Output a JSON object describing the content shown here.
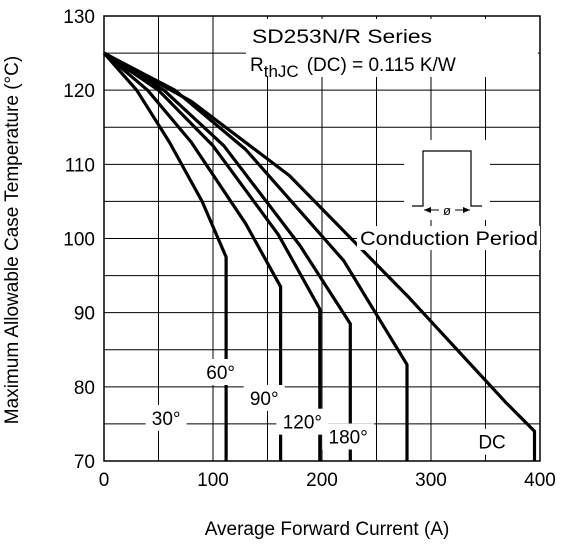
{
  "chart_data": {
    "type": "line",
    "title": "",
    "xlabel": "Average Forward Current (A)",
    "ylabel": "Maximum Allowable Case Temperature (°C)",
    "xlim": [
      0,
      400
    ],
    "ylim": [
      70,
      130
    ],
    "x_ticks": [
      0,
      100,
      200,
      300,
      400
    ],
    "y_ticks": [
      70,
      80,
      90,
      100,
      110,
      120,
      130
    ],
    "x_minor_grid": 50,
    "y_minor_grid": 5,
    "grid": true,
    "annotations": {
      "series_title": "SD253N/R Series",
      "rth_prefix": "R",
      "rth_subscript": "thJC",
      "rth_suffix": "(DC) = 0.115 K/W",
      "inset_label": "Conduction Period",
      "inset_symbol": "ø"
    },
    "series": [
      {
        "name": "30°",
        "points": [
          [
            0,
            125
          ],
          [
            30,
            120
          ],
          [
            60,
            113
          ],
          [
            90,
            105
          ],
          [
            112,
            97.5
          ],
          [
            112,
            70
          ]
        ]
      },
      {
        "name": "60°",
        "points": [
          [
            0,
            125
          ],
          [
            40,
            120
          ],
          [
            80,
            113
          ],
          [
            130,
            102
          ],
          [
            162,
            93.5
          ],
          [
            162,
            70
          ]
        ]
      },
      {
        "name": "90°",
        "points": [
          [
            0,
            125
          ],
          [
            50,
            120
          ],
          [
            100,
            112.5
          ],
          [
            160,
            100.5
          ],
          [
            198,
            90.5
          ],
          [
            198,
            70
          ]
        ]
      },
      {
        "name": "120°",
        "points": [
          [
            0,
            125
          ],
          [
            55,
            120
          ],
          [
            110,
            112.5
          ],
          [
            180,
            99
          ],
          [
            226,
            88.5
          ],
          [
            226,
            70
          ]
        ]
      },
      {
        "name": "180°",
        "points": [
          [
            0,
            125
          ],
          [
            65,
            120
          ],
          [
            130,
            112
          ],
          [
            220,
            97
          ],
          [
            278,
            83
          ],
          [
            278,
            70
          ]
        ]
      },
      {
        "name": "DC",
        "points": [
          [
            0,
            125
          ],
          [
            80,
            118.5
          ],
          [
            170,
            108.5
          ],
          [
            280,
            92
          ],
          [
            368,
            78
          ],
          [
            395,
            74
          ],
          [
            395,
            70
          ]
        ]
      }
    ]
  }
}
